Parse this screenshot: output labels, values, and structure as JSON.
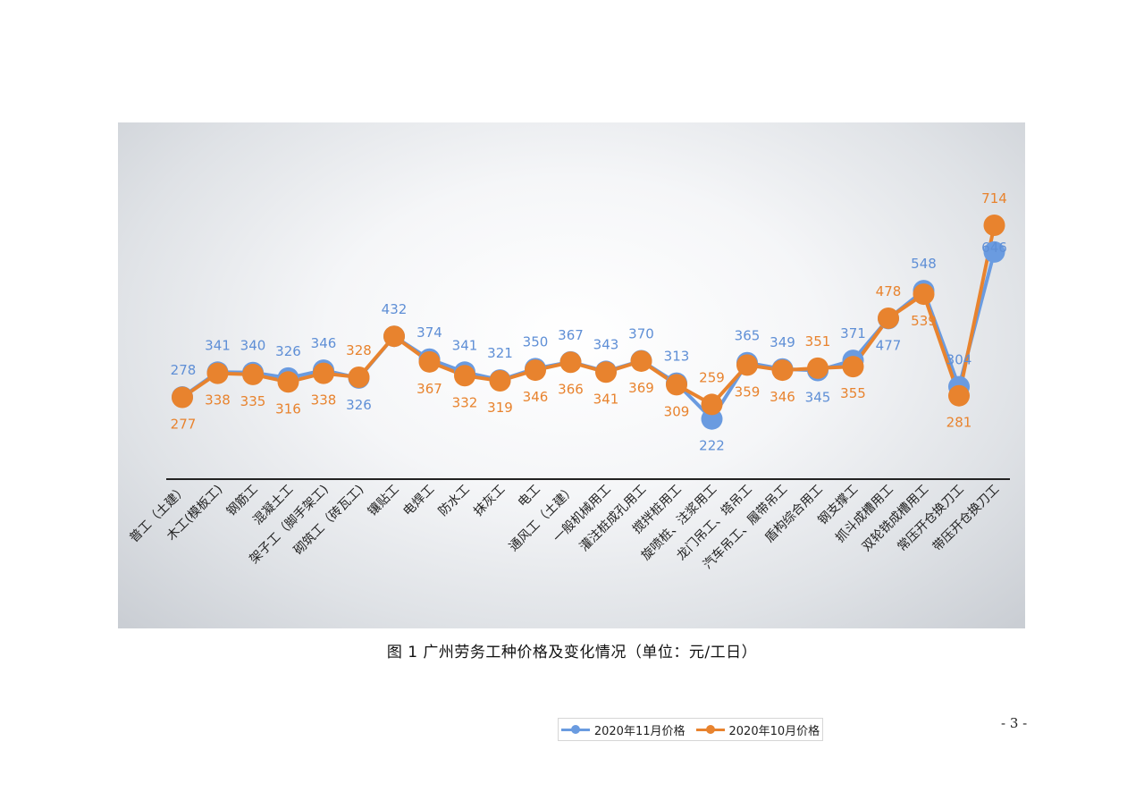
{
  "caption": "图 1 广州劳务工种价格及变化情况（单位：元/工日）",
  "page_number": "- 3 -",
  "legend": {
    "nov_label": "2020年11月价格",
    "oct_label": "2020年10月价格"
  },
  "colors": {
    "nov": "#6a9be0",
    "oct": "#e8832e",
    "nov_text": "#5f8fd6",
    "oct_text": "#e8832e",
    "axis": "#222222"
  },
  "chart_data": {
    "type": "line",
    "title": "",
    "xlabel": "",
    "ylabel": "",
    "ylim": [
      0,
      800
    ],
    "grid": false,
    "legend_position": "bottom",
    "categories": [
      "普工（土建）",
      "木工(模板工)",
      "钢筋工",
      "混凝土工",
      "架子工（脚手架工)",
      "砌筑工（砖瓦工)",
      "镶贴工",
      "电焊工",
      "防水工",
      "抹灰工",
      "电工",
      "通风工（土建）",
      "一般机械用工",
      "灌注桩成孔用工",
      "搅拌桩用工",
      "旋喷桩、注浆用工",
      "龙门吊工、塔吊工",
      "汽车吊工、履带吊工",
      "盾构综合用工",
      "钢支撑工",
      "抓斗成槽用工",
      "双轮铣成槽用工",
      "常压开仓换刀工",
      "带压开仓换刀工"
    ],
    "series": [
      {
        "name": "2020年11月价格",
        "values": [
          278,
          341,
          340,
          326,
          346,
          326,
          432,
          374,
          341,
          321,
          350,
          367,
          343,
          370,
          313,
          222,
          365,
          349,
          345,
          371,
          477,
          548,
          304,
          646
        ]
      },
      {
        "name": "2020年10月价格",
        "values": [
          277,
          338,
          335,
          316,
          338,
          328,
          432,
          367,
          332,
          319,
          346,
          366,
          341,
          369,
          309,
          259,
          359,
          346,
          351,
          355,
          478,
          539,
          281,
          714
        ]
      }
    ]
  }
}
